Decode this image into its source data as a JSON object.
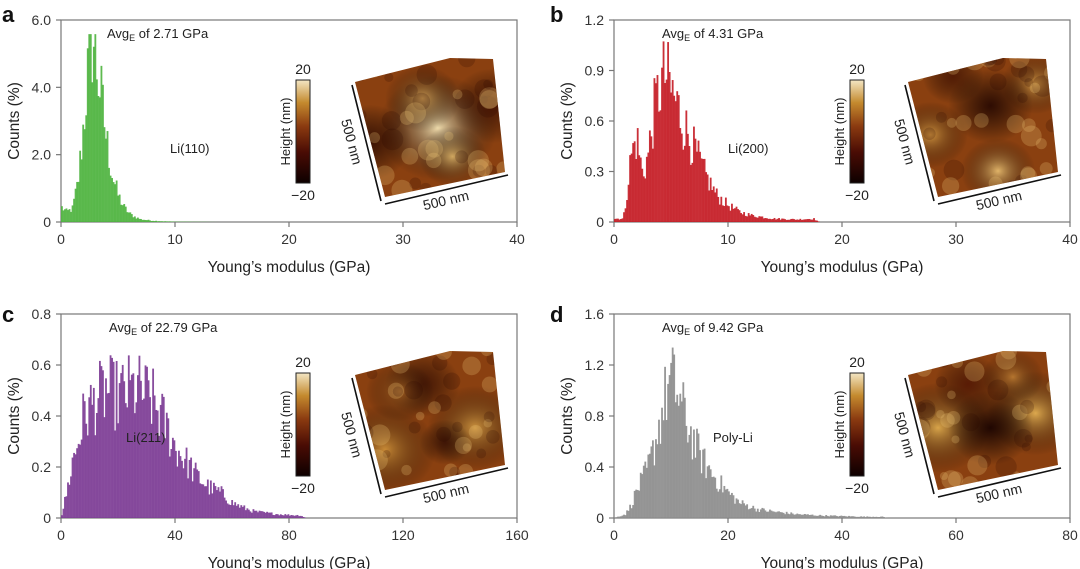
{
  "figure": {
    "colorbar_title": "Height (nm)",
    "colorbar_max": "20",
    "colorbar_min": "−20",
    "scale_x": "500 nm",
    "scale_y": "500 nm"
  },
  "chart_data": [
    {
      "panel": "a",
      "type": "bar",
      "subtype": "histogram",
      "color": "#4db33d",
      "xlabel": "Young’s modulus (GPa)",
      "ylabel": "Counts (%)",
      "xlim": [
        0,
        40
      ],
      "ylim": [
        0,
        6.0
      ],
      "xticks": [
        0,
        10,
        20,
        30,
        40
      ],
      "xtick_labels": [
        "0",
        "10",
        "20",
        "30",
        "40"
      ],
      "yticks": [
        0,
        2.0,
        4.0,
        6.0
      ],
      "ytick_labels": [
        "0",
        "2.0",
        "4.0",
        "6.0"
      ],
      "avg_prefix": "Avg",
      "avg_sub": "E",
      "avg_text": " of 2.71 GPa",
      "sample_label": "Li(110)",
      "afm_scheme": "li110",
      "x": [
        0.0,
        0.5,
        1.0,
        1.5,
        2.0,
        2.5,
        2.8,
        3.0,
        3.5,
        4.0,
        4.5,
        5.0,
        5.5,
        6.0,
        6.5,
        7.0,
        8.0,
        9.0,
        10.0,
        12.0,
        14.0
      ],
      "values": [
        0.45,
        0.3,
        0.4,
        1.2,
        3.0,
        5.1,
        5.5,
        4.9,
        3.8,
        2.4,
        1.4,
        0.8,
        0.45,
        0.25,
        0.15,
        0.08,
        0.04,
        0.02,
        0.01,
        0.005,
        0.0
      ]
    },
    {
      "panel": "b",
      "type": "bar",
      "subtype": "histogram",
      "color": "#c41a22",
      "xlabel": "Young’s modulus (GPa)",
      "ylabel": "Counts (%)",
      "xlim": [
        0,
        40
      ],
      "ylim": [
        0,
        1.2
      ],
      "xticks": [
        0,
        10,
        20,
        30,
        40
      ],
      "xtick_labels": [
        "0",
        "10",
        "20",
        "30",
        "40"
      ],
      "yticks": [
        0,
        0.3,
        0.6,
        0.9,
        1.2
      ],
      "ytick_labels": [
        "0",
        "0.3",
        "0.6",
        "0.9",
        "1.2"
      ],
      "avg_prefix": "Avg",
      "avg_sub": "E",
      "avg_text": " of 4.31 GPa",
      "sample_label": "Li(200)",
      "afm_scheme": "li200",
      "x": [
        0.0,
        0.8,
        1.0,
        1.5,
        2.0,
        2.5,
        3.0,
        3.5,
        4.0,
        4.5,
        5.0,
        5.5,
        6.0,
        6.5,
        7.0,
        7.5,
        8.0,
        9.0,
        10.0,
        11.0,
        12.0,
        14.0,
        16.0,
        17.5,
        18.0
      ],
      "values": [
        0.02,
        0.02,
        0.1,
        0.4,
        0.5,
        0.28,
        0.4,
        0.65,
        0.8,
        0.88,
        0.78,
        0.7,
        0.6,
        0.52,
        0.44,
        0.36,
        0.28,
        0.16,
        0.1,
        0.06,
        0.04,
        0.02,
        0.015,
        0.02,
        0.0
      ]
    },
    {
      "panel": "c",
      "type": "bar",
      "subtype": "histogram",
      "color": "#7b3a93",
      "xlabel": "Young’s modulus (GPa)",
      "ylabel": "Counts (%)",
      "xlim": [
        0,
        160
      ],
      "ylim": [
        0,
        0.8
      ],
      "xticks": [
        0,
        40,
        80,
        120,
        160
      ],
      "xtick_labels": [
        "0",
        "40",
        "80",
        "120",
        "160"
      ],
      "yticks": [
        0,
        0.2,
        0.4,
        0.6,
        0.8
      ],
      "ytick_labels": [
        "0",
        "0.2",
        "0.4",
        "0.6",
        "0.8"
      ],
      "avg_prefix": "Avg",
      "avg_sub": "E",
      "avg_text": " of 22.79 GPa",
      "sample_label": "Li(211)",
      "afm_scheme": "li211",
      "x": [
        0,
        2,
        4,
        6,
        8,
        12,
        16,
        20,
        24,
        28,
        32,
        36,
        40,
        44,
        48,
        52,
        56,
        60,
        64,
        68,
        72,
        76,
        80,
        84,
        86
      ],
      "values": [
        0.0,
        0.1,
        0.22,
        0.3,
        0.4,
        0.46,
        0.5,
        0.48,
        0.5,
        0.5,
        0.46,
        0.38,
        0.28,
        0.22,
        0.16,
        0.12,
        0.1,
        0.06,
        0.04,
        0.025,
        0.02,
        0.015,
        0.012,
        0.01,
        0.0
      ]
    },
    {
      "panel": "d",
      "type": "bar",
      "subtype": "histogram",
      "color": "#8c8c8c",
      "xlabel": "Young’s modulus (GPa)",
      "ylabel": "Counts (%)",
      "xlim": [
        0,
        80
      ],
      "ylim": [
        0,
        1.6
      ],
      "xticks": [
        0,
        20,
        40,
        60,
        80
      ],
      "xtick_labels": [
        "0",
        "20",
        "40",
        "60",
        "80"
      ],
      "yticks": [
        0,
        0.4,
        0.8,
        1.2,
        1.6
      ],
      "ytick_labels": [
        "0",
        "0.4",
        "0.8",
        "1.2",
        "1.6"
      ],
      "avg_prefix": "Avg",
      "avg_sub": "E",
      "avg_text": " of 9.42 GPa",
      "sample_label": "Poly-Li",
      "afm_scheme": "polyli",
      "x": [
        0,
        2,
        3,
        4,
        5,
        6,
        7,
        8,
        9,
        10,
        11,
        12,
        13,
        14,
        15,
        16,
        18,
        20,
        22,
        25,
        28,
        32,
        36,
        40,
        44,
        47,
        48
      ],
      "values": [
        0.0,
        0.03,
        0.1,
        0.22,
        0.3,
        0.4,
        0.55,
        0.75,
        0.95,
        1.08,
        1.0,
        0.85,
        0.72,
        0.6,
        0.5,
        0.42,
        0.3,
        0.2,
        0.12,
        0.07,
        0.05,
        0.03,
        0.02,
        0.015,
        0.01,
        0.01,
        0.0
      ]
    }
  ]
}
